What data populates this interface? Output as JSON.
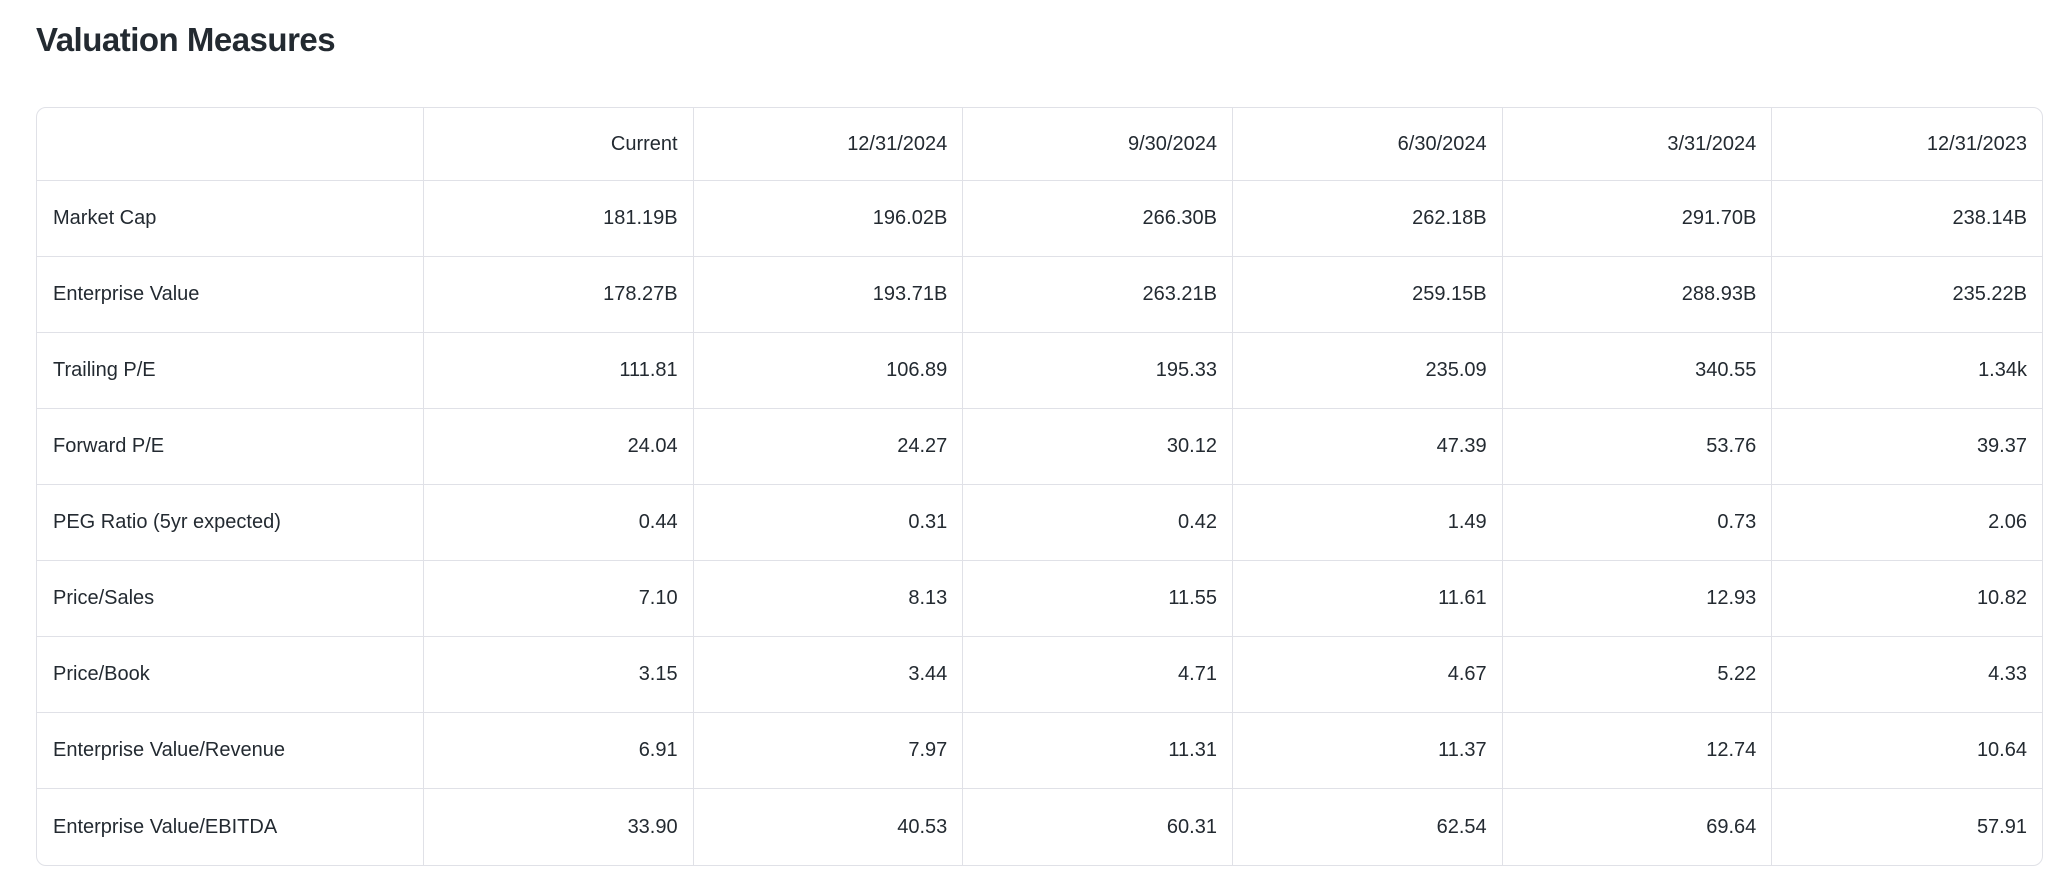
{
  "section": {
    "title": "Valuation Measures"
  },
  "table": {
    "columns": [
      "",
      "Current",
      "12/31/2024",
      "9/30/2024",
      "6/30/2024",
      "3/31/2024",
      "12/31/2023"
    ],
    "rows": [
      {
        "label": "Market Cap",
        "values": [
          "181.19B",
          "196.02B",
          "266.30B",
          "262.18B",
          "291.70B",
          "238.14B"
        ]
      },
      {
        "label": "Enterprise Value",
        "values": [
          "178.27B",
          "193.71B",
          "263.21B",
          "259.15B",
          "288.93B",
          "235.22B"
        ]
      },
      {
        "label": "Trailing P/E",
        "values": [
          "111.81",
          "106.89",
          "195.33",
          "235.09",
          "340.55",
          "1.34k"
        ]
      },
      {
        "label": "Forward P/E",
        "values": [
          "24.04",
          "24.27",
          "30.12",
          "47.39",
          "53.76",
          "39.37"
        ]
      },
      {
        "label": "PEG Ratio (5yr expected)",
        "values": [
          "0.44",
          "0.31",
          "0.42",
          "1.49",
          "0.73",
          "2.06"
        ]
      },
      {
        "label": "Price/Sales",
        "values": [
          "7.10",
          "8.13",
          "11.55",
          "11.61",
          "12.93",
          "10.82"
        ]
      },
      {
        "label": "Price/Book",
        "values": [
          "3.15",
          "3.44",
          "4.71",
          "4.67",
          "5.22",
          "4.33"
        ]
      },
      {
        "label": "Enterprise Value/Revenue",
        "values": [
          "6.91",
          "7.97",
          "11.31",
          "11.37",
          "12.74",
          "10.64"
        ]
      },
      {
        "label": "Enterprise Value/EBITDA",
        "values": [
          "33.90",
          "40.53",
          "60.31",
          "62.54",
          "69.64",
          "57.91"
        ]
      }
    ]
  },
  "colors": {
    "text": "#232a31",
    "border": "#e0e1e7",
    "background": "#ffffff"
  }
}
